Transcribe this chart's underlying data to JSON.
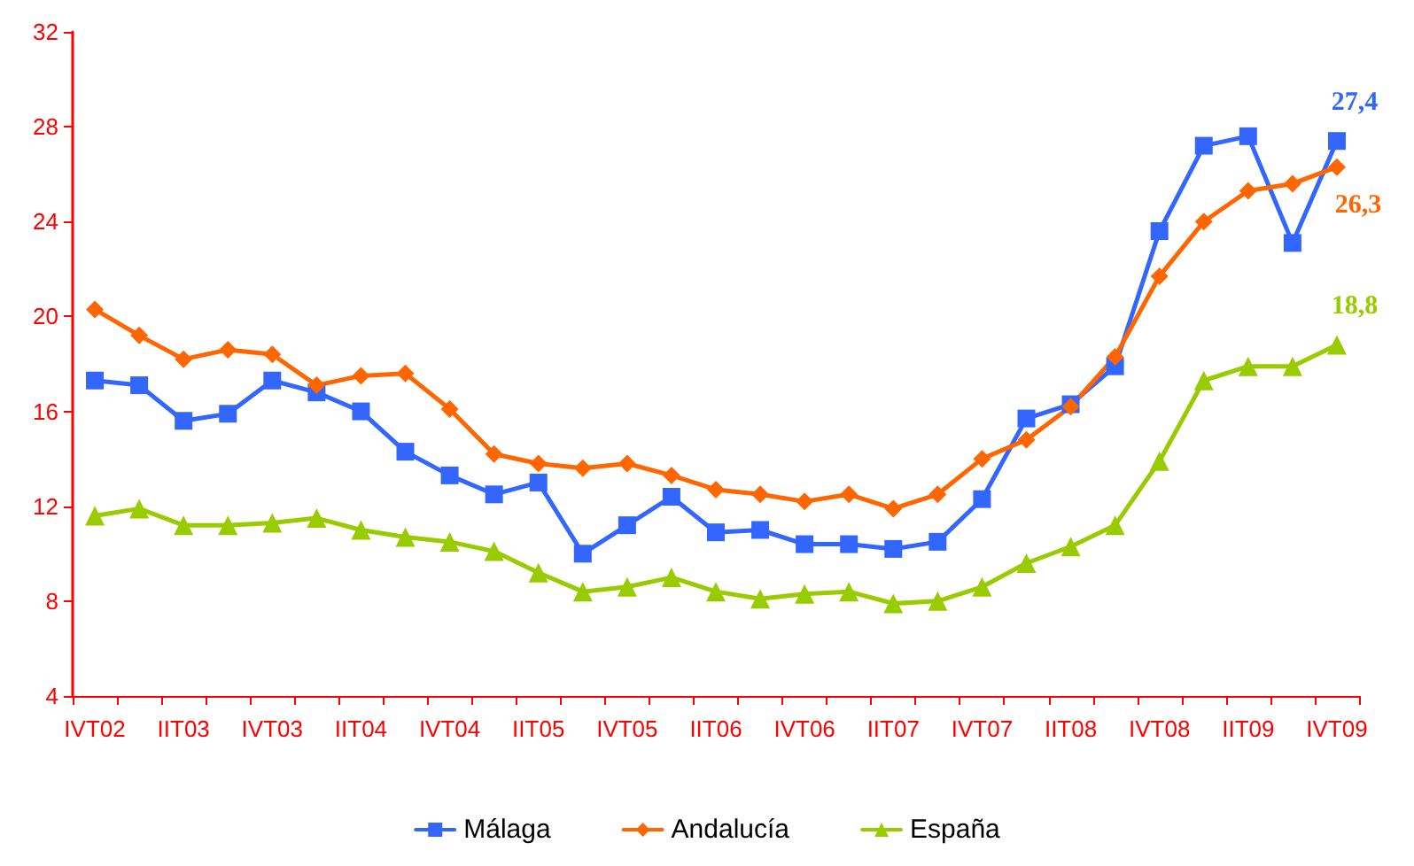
{
  "chart_data": {
    "type": "line",
    "categories": [
      "IVT02",
      null,
      "IIT03",
      null,
      "IVT03",
      null,
      "IIT04",
      null,
      "IVT04",
      null,
      "IIT05",
      null,
      "IVT05",
      null,
      "IIT06",
      null,
      "IVT06",
      null,
      "IIT07",
      null,
      "IVT07",
      null,
      "IIT08",
      null,
      "IVT08",
      null,
      "IIT09",
      null,
      "IVT09"
    ],
    "series": [
      {
        "name": "Málaga",
        "color": "#3366ff",
        "marker": "square",
        "values": [
          17.3,
          17.1,
          15.6,
          15.9,
          17.3,
          16.8,
          16.0,
          14.3,
          13.3,
          12.5,
          13.0,
          10.0,
          11.2,
          12.4,
          10.9,
          11.0,
          10.4,
          10.4,
          10.2,
          10.5,
          12.3,
          15.7,
          16.3,
          17.9,
          23.6,
          27.2,
          27.6,
          23.1,
          27.4
        ],
        "value_labels": [
          null,
          null,
          null,
          null,
          null,
          null,
          null,
          null,
          null,
          null,
          null,
          null,
          null,
          null,
          null,
          null,
          null,
          null,
          null,
          null,
          null,
          null,
          null,
          null,
          null,
          null,
          null,
          null,
          "27,4"
        ]
      },
      {
        "name": "Andalucía",
        "color": "#ff6600",
        "marker": "diamond",
        "values": [
          20.3,
          19.2,
          18.2,
          18.6,
          18.4,
          17.1,
          17.5,
          17.6,
          16.1,
          14.2,
          13.8,
          13.6,
          13.8,
          13.3,
          12.7,
          12.5,
          12.2,
          12.5,
          11.9,
          12.5,
          14.0,
          14.8,
          16.2,
          18.3,
          21.7,
          24.0,
          25.3,
          25.6,
          26.3
        ],
        "value_labels": [
          null,
          null,
          null,
          null,
          null,
          null,
          null,
          null,
          null,
          null,
          null,
          null,
          null,
          null,
          null,
          null,
          null,
          null,
          null,
          null,
          null,
          null,
          null,
          null,
          null,
          null,
          null,
          null,
          "26,3"
        ]
      },
      {
        "name": "España",
        "color": "#99cc00",
        "marker": "triangle",
        "values": [
          11.6,
          11.9,
          11.2,
          11.2,
          11.3,
          11.5,
          11.0,
          10.7,
          10.5,
          10.1,
          9.2,
          8.4,
          8.6,
          9.0,
          8.4,
          8.1,
          8.3,
          8.4,
          7.9,
          8.0,
          8.6,
          9.6,
          10.3,
          11.2,
          13.9,
          17.3,
          17.9,
          17.9,
          18.8
        ],
        "value_labels": [
          null,
          null,
          null,
          null,
          null,
          null,
          null,
          null,
          null,
          null,
          null,
          null,
          null,
          null,
          null,
          null,
          null,
          null,
          null,
          null,
          null,
          null,
          null,
          null,
          null,
          null,
          null,
          null,
          "18,8"
        ]
      }
    ],
    "ylim": [
      4,
      32
    ],
    "yticks": [
      4,
      8,
      12,
      16,
      20,
      24,
      28,
      32
    ],
    "grid": false,
    "legend": "bottom"
  }
}
